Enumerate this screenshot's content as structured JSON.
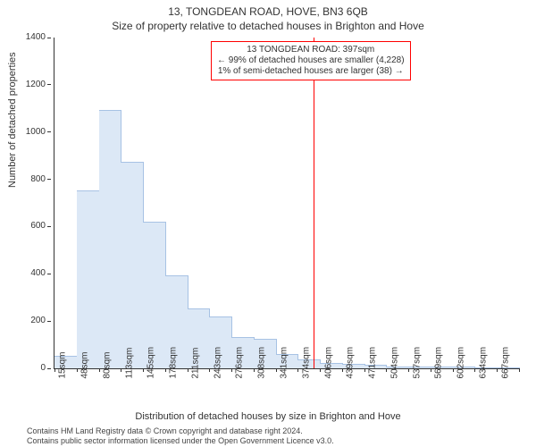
{
  "title": "13, TONGDEAN ROAD, HOVE, BN3 6QB",
  "subtitle": "Size of property relative to detached houses in Brighton and Hove",
  "y_axis_label": "Number of detached properties",
  "x_axis_label": "Distribution of detached houses by size in Brighton and Hove",
  "chart": {
    "type": "histogram",
    "background_color": "#ffffff",
    "axis_color": "#333333",
    "text_color": "#333333",
    "bar_fill": "#dce8f6",
    "bar_stroke": "#a7c2e4",
    "ylim": [
      0,
      1400
    ],
    "ytick_step": 200,
    "xtick_labels": [
      "15sqm",
      "48sqm",
      "80sqm",
      "113sqm",
      "145sqm",
      "178sqm",
      "211sqm",
      "243sqm",
      "276sqm",
      "308sqm",
      "341sqm",
      "374sqm",
      "406sqm",
      "439sqm",
      "471sqm",
      "504sqm",
      "537sqm",
      "569sqm",
      "602sqm",
      "634sqm",
      "667sqm"
    ],
    "values": [
      48,
      750,
      1090,
      870,
      615,
      390,
      250,
      215,
      130,
      120,
      55,
      35,
      20,
      15,
      10,
      5,
      5,
      3,
      2,
      1,
      1
    ]
  },
  "annotation": {
    "line_x_sqm": 397,
    "line_color": "#ff0000",
    "box_border_color": "#ff0000",
    "box_bg_color": "#ffffff",
    "line1": "13 TONGDEAN ROAD: 397sqm",
    "line2": "← 99% of detached houses are smaller (4,228)",
    "line3": "1% of semi-detached houses are larger (38) →"
  },
  "footer_line1": "Contains HM Land Registry data © Crown copyright and database right 2024.",
  "footer_line2": "Contains public sector information licensed under the Open Government Licence v3.0."
}
